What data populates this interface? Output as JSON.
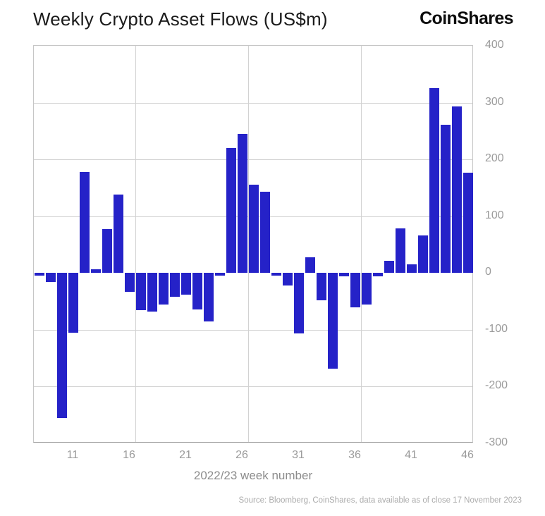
{
  "header": {
    "title": "Weekly Crypto Asset Flows (US$m)",
    "logo": "CoinShares"
  },
  "chart_data": {
    "type": "bar",
    "title": "Weekly Crypto Asset Flows (US$m)",
    "xlabel": "2022/23 week number",
    "ylabel": "",
    "x": [
      8,
      9,
      10,
      11,
      12,
      13,
      14,
      15,
      16,
      17,
      18,
      19,
      20,
      21,
      22,
      23,
      24,
      25,
      26,
      27,
      28,
      29,
      30,
      31,
      32,
      33,
      34,
      35,
      36,
      37,
      38,
      39,
      40,
      41,
      42,
      43,
      44,
      45,
      46
    ],
    "values": [
      -5,
      -16,
      -255,
      -105,
      178,
      7,
      77,
      138,
      -33,
      -66,
      -68,
      -56,
      -42,
      -38,
      -64,
      -85,
      -4,
      220,
      245,
      155,
      143,
      -4,
      -22,
      -107,
      28,
      -48,
      -168,
      -6,
      -60,
      -56,
      -6,
      21,
      78,
      15,
      66,
      326,
      261,
      293,
      176
    ],
    "x_ticks": [
      11,
      16,
      21,
      26,
      31,
      36,
      41,
      46
    ],
    "y_ticks": [
      400,
      300,
      200,
      100,
      0,
      -100,
      -200,
      -300
    ],
    "ylim": [
      -300,
      400
    ],
    "grid_after_weeks": [
      16,
      26,
      36
    ],
    "grid": "on",
    "legend": "none",
    "bar_color": "#2522c8"
  },
  "footer": {
    "source": "Source: Bloomberg, CoinShares, data available as of close 17 November 2023"
  }
}
